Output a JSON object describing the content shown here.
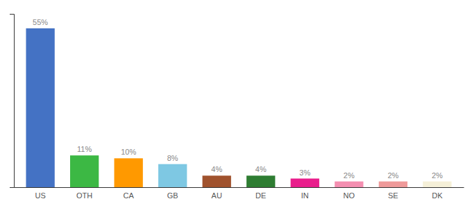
{
  "chart_data": {
    "type": "bar",
    "categories": [
      "US",
      "OTH",
      "CA",
      "GB",
      "AU",
      "DE",
      "IN",
      "NO",
      "SE",
      "DK"
    ],
    "values": [
      55,
      11,
      10,
      8,
      4,
      4,
      3,
      2,
      2,
      2
    ],
    "value_labels": [
      "55%",
      "11%",
      "10%",
      "8%",
      "4%",
      "4%",
      "3%",
      "2%",
      "2%",
      "2%"
    ],
    "colors": [
      "#4472c4",
      "#3cb844",
      "#ff9900",
      "#7ec8e3",
      "#a0522d",
      "#2e7d32",
      "#e91e8c",
      "#f48fb1",
      "#ef9a9a",
      "#f5f0d8"
    ],
    "ylim": [
      0,
      60
    ],
    "yticks": [],
    "grid": false,
    "data_labels": true,
    "tick_labels": "x"
  }
}
